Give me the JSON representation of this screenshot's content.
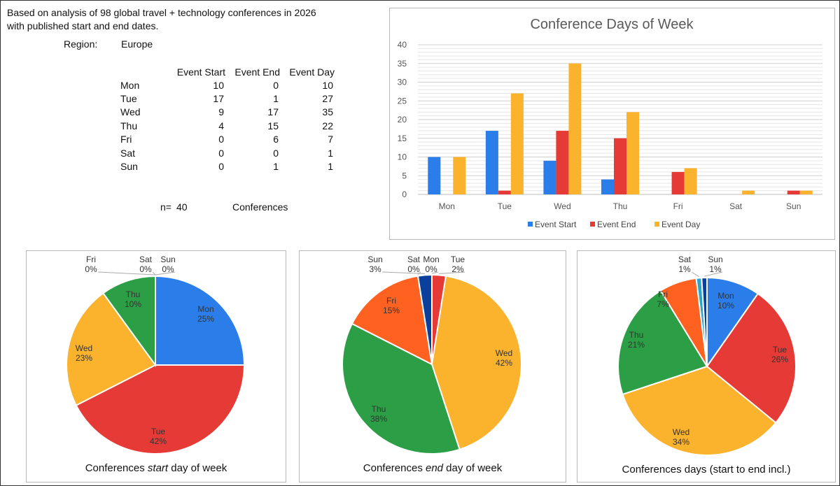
{
  "intro": {
    "line1": "Based on analysis of 98 global travel + technology conferences in 2026",
    "line2": "with published start and end dates.",
    "region_label": "Region:",
    "region_value": "Europe"
  },
  "summary_table": {
    "headers": [
      "Event Start",
      "Event End",
      "Event Day"
    ],
    "rows": [
      {
        "day": "Mon",
        "start": "10",
        "end": "0",
        "eventday": "10"
      },
      {
        "day": "Tue",
        "start": "17",
        "end": "1",
        "eventday": "27"
      },
      {
        "day": "Wed",
        "start": "9",
        "end": "17",
        "eventday": "35"
      },
      {
        "day": "Thu",
        "start": "4",
        "end": "15",
        "eventday": "22"
      },
      {
        "day": "Fri",
        "start": "0",
        "end": "6",
        "eventday": "7"
      },
      {
        "day": "Sat",
        "start": "0",
        "end": "0",
        "eventday": "1"
      },
      {
        "day": "Sun",
        "start": "0",
        "end": "1",
        "eventday": "1"
      }
    ],
    "n_label": "n=",
    "n_value": "40",
    "n_unit": "Conferences"
  },
  "chart_data": [
    {
      "type": "bar",
      "title": "Conference Days of Week",
      "categories": [
        "Mon",
        "Tue",
        "Wed",
        "Thu",
        "Fri",
        "Sat",
        "Sun"
      ],
      "series": [
        {
          "name": "Event Start",
          "color": "#2b7de9",
          "values": [
            10,
            17,
            9,
            4,
            0,
            0,
            0
          ]
        },
        {
          "name": "Event End",
          "color": "#e63a37",
          "values": [
            0,
            1,
            17,
            15,
            6,
            0,
            1
          ]
        },
        {
          "name": "Event Day",
          "color": "#fbb22c",
          "values": [
            10,
            27,
            35,
            22,
            7,
            1,
            1
          ]
        }
      ],
      "ylim": [
        0,
        40
      ],
      "yticks": [
        0,
        5,
        10,
        15,
        20,
        25,
        30,
        35,
        40
      ],
      "grid": true,
      "legend": "bottom"
    },
    {
      "type": "pie",
      "title_parts": [
        "Conferences ",
        "start",
        " day of week"
      ],
      "slices": [
        {
          "label": "Mon",
          "pct_label": "25%",
          "value": 10,
          "color": "#2b7de9"
        },
        {
          "label": "Tue",
          "pct_label": "42%",
          "value": 17,
          "color": "#e63a37"
        },
        {
          "label": "Wed",
          "pct_label": "23%",
          "value": 9,
          "color": "#fbb22c"
        },
        {
          "label": "Thu",
          "pct_label": "10%",
          "value": 4,
          "color": "#2c9e45"
        },
        {
          "label": "Fri",
          "pct_label": "0%",
          "value": 0,
          "color": "#ff6121"
        },
        {
          "label": "Sat",
          "pct_label": "0%",
          "value": 0,
          "color": "#0a3f9c"
        },
        {
          "label": "Sun",
          "pct_label": "0%",
          "value": 0,
          "color": "#2ca3c9"
        }
      ]
    },
    {
      "type": "pie",
      "title_parts": [
        "Conferences ",
        "end",
        " day of week"
      ],
      "slices": [
        {
          "label": "Mon",
          "pct_label": "0%",
          "value": 0,
          "color": "#2b7de9"
        },
        {
          "label": "Tue",
          "pct_label": "2%",
          "value": 1,
          "color": "#e63a37"
        },
        {
          "label": "Wed",
          "pct_label": "42%",
          "value": 17,
          "color": "#fbb22c"
        },
        {
          "label": "Thu",
          "pct_label": "38%",
          "value": 15,
          "color": "#2c9e45"
        },
        {
          "label": "Fri",
          "pct_label": "15%",
          "value": 6,
          "color": "#ff6121"
        },
        {
          "label": "Sat",
          "pct_label": "0%",
          "value": 0,
          "color": "#2ca3c9"
        },
        {
          "label": "Sun",
          "pct_label": "3%",
          "value": 1,
          "color": "#0a3f9c"
        }
      ]
    },
    {
      "type": "pie",
      "title_parts": [
        "Conferences days (start to end incl.)"
      ],
      "slices": [
        {
          "label": "Mon",
          "pct_label": "10%",
          "value": 10,
          "color": "#2b7de9"
        },
        {
          "label": "Tue",
          "pct_label": "26%",
          "value": 27,
          "color": "#e63a37"
        },
        {
          "label": "Wed",
          "pct_label": "34%",
          "value": 35,
          "color": "#fbb22c"
        },
        {
          "label": "Thu",
          "pct_label": "21%",
          "value": 22,
          "color": "#2c9e45"
        },
        {
          "label": "Fri",
          "pct_label": "7%",
          "value": 7,
          "color": "#ff6121"
        },
        {
          "label": "Sat",
          "pct_label": "1%",
          "value": 1,
          "color": "#2ca3c9"
        },
        {
          "label": "Sun",
          "pct_label": "1%",
          "value": 1,
          "color": "#0a3f9c"
        }
      ]
    }
  ]
}
